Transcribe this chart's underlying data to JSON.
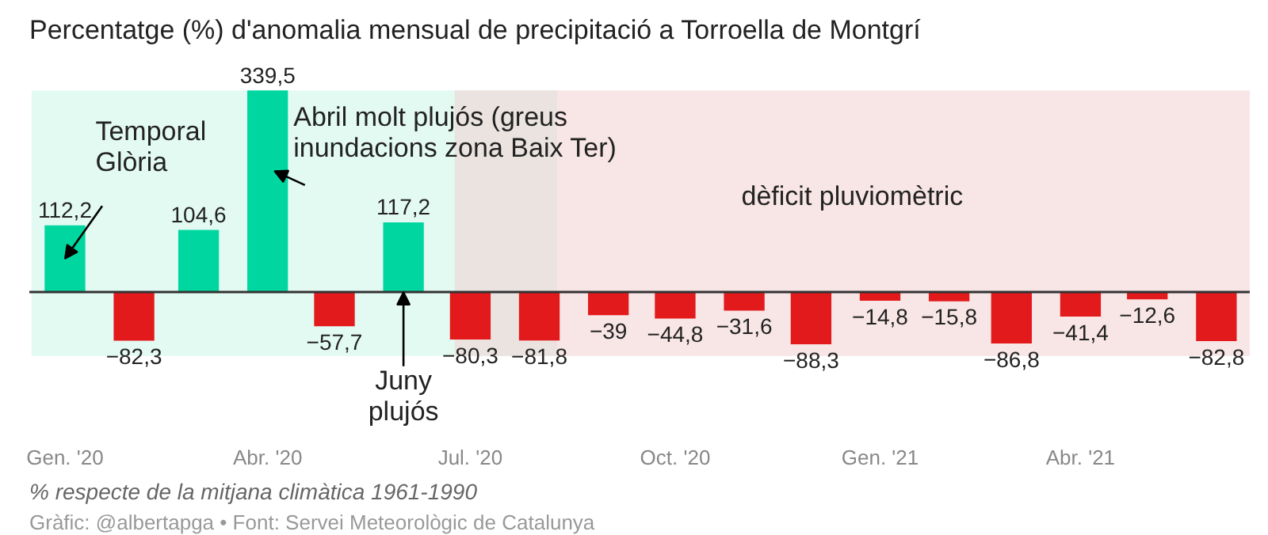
{
  "chart_data": {
    "type": "bar",
    "title": "Percentatge (%) d'anomalia mensual de precipitació a Torroella de Montgrí",
    "x": [
      "2020-01",
      "2020-02",
      "2020-03",
      "2020-04",
      "2020-05",
      "2020-06",
      "2020-07",
      "2020-08",
      "2020-09",
      "2020-10",
      "2020-11",
      "2020-12",
      "2021-01",
      "2021-02",
      "2021-03",
      "2021-04",
      "2021-05",
      "2021-06"
    ],
    "values": [
      112.2,
      -82.3,
      104.6,
      339.5,
      -57.7,
      117.2,
      -80.3,
      -81.8,
      -39,
      -44.8,
      -31.6,
      -88.3,
      -14.8,
      -15.8,
      -86.8,
      -41.4,
      -12.6,
      -82.8
    ],
    "value_labels": [
      "112,2",
      "−82,3",
      "104,6",
      "339,5",
      "−57,7",
      "117,2",
      "−80,3",
      "−81,8",
      "−39",
      "−44,8",
      "−31,6",
      "−88,3",
      "−14,8",
      "−15,8",
      "−86,8",
      "−41,4",
      "−12,6",
      "−82,8"
    ],
    "colors": [
      "#00d7a0",
      "#e31a1c",
      "#00d7a0",
      "#00d7a0",
      "#e31a1c",
      "#00d7a0",
      "#e31a1c",
      "#e31a1c",
      "#e31a1c",
      "#e31a1c",
      "#e31a1c",
      "#e31a1c",
      "#e31a1c",
      "#e31a1c",
      "#e31a1c",
      "#e31a1c",
      "#e31a1c",
      "#e31a1c"
    ],
    "xlim": [
      "2019-12-16",
      "2021-06-16"
    ],
    "xticks": [
      {
        "value": "2020-01",
        "label": "Gen. '20"
      },
      {
        "value": "2020-04",
        "label": "Abr. '20"
      },
      {
        "value": "2020-07",
        "label": "Jul. '20"
      },
      {
        "value": "2020-10",
        "label": "Oct. '20"
      },
      {
        "value": "2021-01",
        "label": "Gen. '21"
      },
      {
        "value": "2021-04",
        "label": "Abr. '21"
      }
    ],
    "tick_labels": "x",
    "bands": [
      {
        "axis": "x",
        "from": "2019-12-17",
        "to": "2020-08-09",
        "label": null,
        "color": "#c8f5e6"
      },
      {
        "axis": "x",
        "from": "2020-06-24",
        "to": "2021-06-16",
        "label": "dèficit pluviomètric",
        "color": "#f2cccc"
      }
    ],
    "annotations": [
      {
        "text": "Temporal\nGlòria",
        "x": "2020-01",
        "y": 112.2
      },
      {
        "text": "Abril molt plujós (greus\ninundacions zona Baix Ter)",
        "x": "2020-04",
        "y": 339.5
      },
      {
        "text": "Juny\nplujós",
        "x": "2020-06",
        "y": 0
      },
      "% respecte de la mitjana climàtica 1961-1990",
      "Gràfic: @albertapga • Font: Servei Meteorològic de Catalunya"
    ],
    "grid": false
  }
}
